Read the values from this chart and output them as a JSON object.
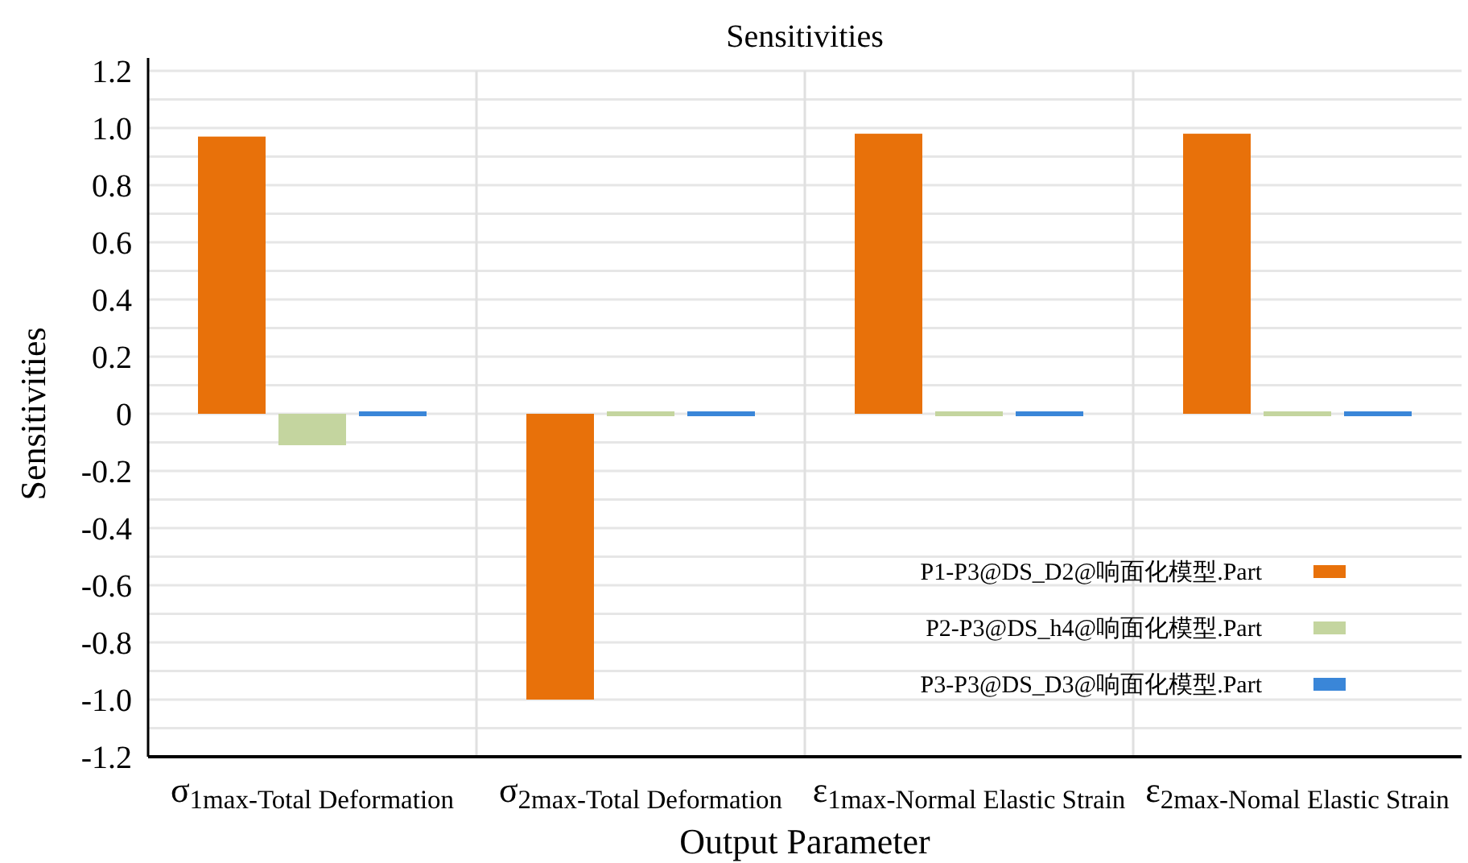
{
  "chart_data": {
    "type": "bar",
    "title": "Sensitivities",
    "xlabel": "Output Parameter",
    "ylabel": "Sensitivities",
    "categories": [
      "σ$_{1max-Total Deformation}$",
      "σ$_{2max-Total Deformation}$",
      "ε$_{1max-Normal Elastic Strain}$",
      "ε$_{2max-Nomal Elastic Strain}$"
    ],
    "series": [
      {
        "name": "P1-P3@DS_D2@响面化模型.Part",
        "color": "#e8710a",
        "values": [
          0.97,
          -1.0,
          0.98,
          0.98
        ]
      },
      {
        "name": "P2-P3@DS_h4@响面化模型.Part",
        "color": "#c4d59f",
        "values": [
          -0.11,
          0,
          0,
          0
        ]
      },
      {
        "name": "P3-P3@DS_D3@响面化模型.Part",
        "color": "#3a86d8",
        "values": [
          0,
          0,
          0,
          0
        ]
      }
    ],
    "ylim": [
      -1.2,
      1.2
    ],
    "yticks": [
      {
        "value": -1.2,
        "label": "-1.2"
      },
      {
        "value": -1.1,
        "label": null
      },
      {
        "value": -1.0,
        "label": "-1.0"
      },
      {
        "value": -0.9,
        "label": null
      },
      {
        "value": -0.8,
        "label": "-0.8"
      },
      {
        "value": -0.7,
        "label": null
      },
      {
        "value": -0.6,
        "label": "-0.6"
      },
      {
        "value": -0.5,
        "label": null
      },
      {
        "value": -0.4,
        "label": "-0.4"
      },
      {
        "value": -0.3,
        "label": null
      },
      {
        "value": -0.2,
        "label": "-0.2"
      },
      {
        "value": -0.1,
        "label": null
      },
      {
        "value": 0,
        "label": "0"
      },
      {
        "value": 0.1,
        "label": null
      },
      {
        "value": 0.2,
        "label": "0.2"
      },
      {
        "value": 0.3,
        "label": null
      },
      {
        "value": 0.4,
        "label": "0.4"
      },
      {
        "value": 0.5,
        "label": null
      },
      {
        "value": 0.6,
        "label": "0.6"
      },
      {
        "value": 0.7,
        "label": null
      },
      {
        "value": 0.8,
        "label": "0.8"
      },
      {
        "value": 0.9,
        "label": null
      },
      {
        "value": 1.0,
        "label": "1.0"
      },
      {
        "value": 1.1,
        "label": null
      },
      {
        "value": 1.2,
        "label": "1.2"
      }
    ],
    "grid": true,
    "legend": "bottom right"
  }
}
